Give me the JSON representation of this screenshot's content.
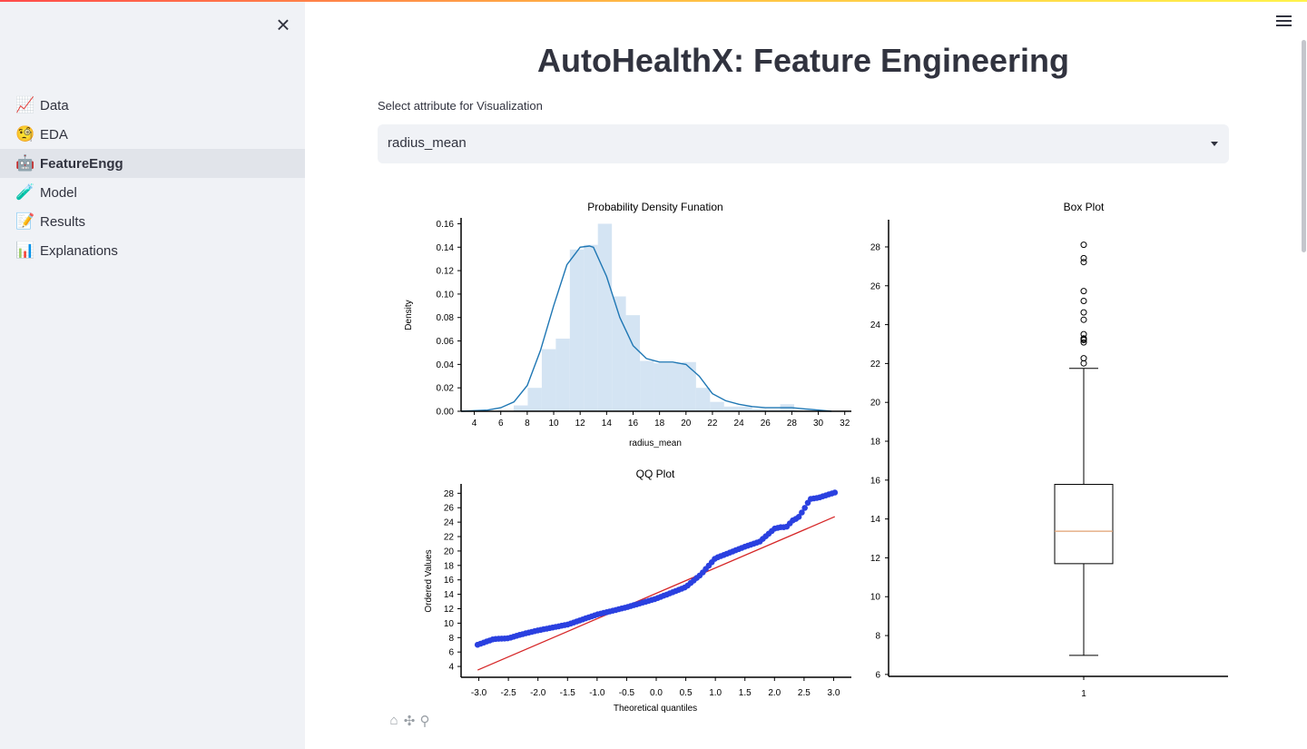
{
  "sidebar": {
    "close_icon": "close-icon",
    "items": [
      {
        "icon": "📈",
        "icon_name": "chart-increasing-icon",
        "label": "Data"
      },
      {
        "icon": "🧐",
        "icon_name": "face-with-monocle-icon",
        "label": "EDA"
      },
      {
        "icon": "🤖",
        "icon_name": "robot-icon",
        "label": "FeatureEngg",
        "active": true
      },
      {
        "icon": "🧪",
        "icon_name": "test-tube-icon",
        "label": "Model"
      },
      {
        "icon": "📝",
        "icon_name": "memo-icon",
        "label": "Results"
      },
      {
        "icon": "📊",
        "icon_name": "bar-chart-icon",
        "label": "Explanations"
      }
    ]
  },
  "header": {
    "menu_icon": "hamburger-menu-icon"
  },
  "main": {
    "title": "AutoHealthX: Feature Engineering",
    "select": {
      "label": "Select attribute for Visualization",
      "value": "radius_mean"
    }
  },
  "toolbar": {
    "home": "⌂",
    "pan": "✣",
    "zoom": "⚲"
  },
  "colors": {
    "accent_gradient": [
      "#ff4b4b",
      "#ffbd45",
      "#fff34b"
    ],
    "kde_line": "#1f77b4",
    "hist_fill": "#c6dbef",
    "qq_points": "#2a40e0",
    "qq_line": "#d62728",
    "median": "#e0a070"
  },
  "chart_data": [
    {
      "type": "bar",
      "title": "Probability Density Funation",
      "xlabel": "radius_mean",
      "ylabel": "Density",
      "xlim": [
        3,
        32.5
      ],
      "ylim": [
        0,
        0.165
      ],
      "xticks": [
        "4",
        "6",
        "8",
        "10",
        "12",
        "14",
        "16",
        "18",
        "20",
        "22",
        "24",
        "26",
        "28",
        "30",
        "32"
      ],
      "yticks": [
        "0.00",
        "0.02",
        "0.04",
        "0.06",
        "0.08",
        "0.10",
        "0.12",
        "0.14",
        "0.16"
      ],
      "histogram": {
        "bin_start": 6.98,
        "bin_width": 1.06,
        "values": [
          0.005,
          0.02,
          0.053,
          0.062,
          0.138,
          0.142,
          0.16,
          0.098,
          0.082,
          0.043,
          0.041,
          0.041,
          0.042,
          0.02,
          0.008,
          0.004,
          0.004,
          0.002,
          0.001,
          0.006,
          0.001,
          0.001
        ]
      },
      "kde": {
        "x": [
          3,
          5,
          6,
          7,
          8,
          9,
          10,
          11,
          12,
          12.7,
          13,
          14,
          15,
          16,
          17,
          18,
          19,
          20,
          21,
          22,
          23,
          24,
          25,
          26,
          27,
          28,
          29,
          30,
          31
        ],
        "y": [
          0,
          0.001,
          0.003,
          0.008,
          0.022,
          0.052,
          0.09,
          0.125,
          0.14,
          0.141,
          0.14,
          0.115,
          0.08,
          0.056,
          0.045,
          0.042,
          0.042,
          0.04,
          0.03,
          0.015,
          0.009,
          0.006,
          0.004,
          0.003,
          0.003,
          0.003,
          0.002,
          0.001,
          0
        ]
      }
    },
    {
      "type": "scatter",
      "title": "QQ Plot",
      "xlabel": "Theoretical quantiles",
      "ylabel": "Ordered Values",
      "xlim": [
        -3.3,
        3.3
      ],
      "ylim": [
        2.5,
        29.3
      ],
      "xticks": [
        "-3.0",
        "-2.5",
        "-2.0",
        "-1.5",
        "-1.0",
        "-0.5",
        "0.0",
        "0.5",
        "1.0",
        "1.5",
        "2.0",
        "2.5",
        "3.0"
      ],
      "yticks": [
        "4",
        "6",
        "8",
        "10",
        "12",
        "14",
        "16",
        "18",
        "20",
        "22",
        "24",
        "26",
        "28"
      ],
      "curve": {
        "x": [
          -3.02,
          -2.75,
          -2.5,
          -2.3,
          -2.0,
          -1.5,
          -1.0,
          -0.5,
          0.0,
          0.5,
          0.75,
          1.0,
          1.25,
          1.5,
          1.75,
          2.0,
          2.1,
          2.2,
          2.3,
          2.4,
          2.5,
          2.6,
          2.75,
          3.02
        ],
        "y": [
          7.0,
          7.8,
          7.9,
          8.4,
          9.0,
          9.8,
          11.2,
          12.2,
          13.4,
          15.0,
          16.7,
          19.0,
          19.8,
          20.6,
          21.3,
          23.1,
          23.3,
          23.3,
          24.2,
          24.6,
          25.8,
          27.2,
          27.4,
          28.1
        ]
      },
      "fit_line": {
        "slope": 3.52,
        "intercept": 14.13
      }
    },
    {
      "type": "box",
      "title": "Box Plot",
      "categories": [
        "1"
      ],
      "ylim": [
        5.9,
        29.4
      ],
      "yticks": [
        "6",
        "8",
        "10",
        "12",
        "14",
        "16",
        "18",
        "20",
        "22",
        "24",
        "26",
        "28"
      ],
      "whisker_low": 6.98,
      "q1": 11.7,
      "median": 13.37,
      "q3": 15.78,
      "whisker_high": 21.75,
      "outliers": [
        22.01,
        22.27,
        23.09,
        23.21,
        23.27,
        23.29,
        23.51,
        24.25,
        24.63,
        25.22,
        25.73,
        27.22,
        27.42,
        28.11
      ]
    }
  ]
}
